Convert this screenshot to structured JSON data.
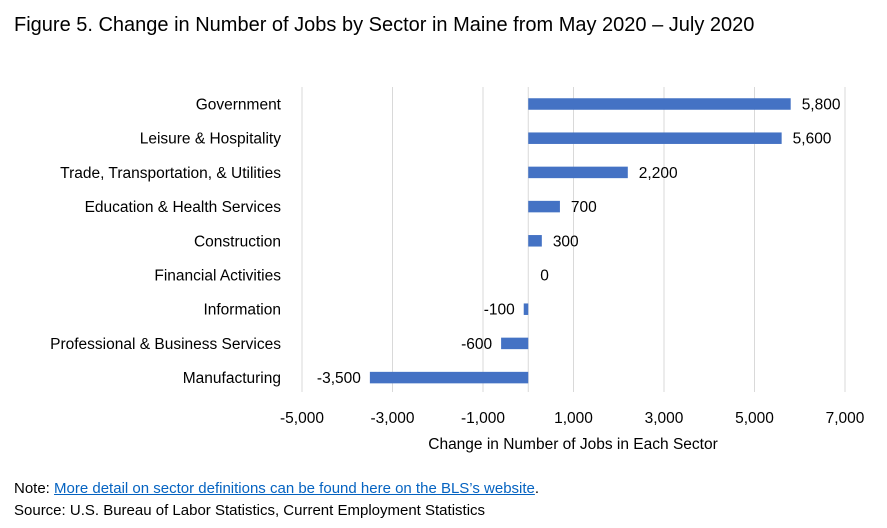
{
  "figure_title": "Figure 5. Change in Number of Jobs by Sector in Maine from May 2020 – July 2020",
  "note_prefix": "Note: ",
  "note_link_text": "More detail on sector definitions can be found here on the BLS’s website",
  "note_suffix": ".",
  "source": "Source: U.S. Bureau of Labor Statistics, Current Employment Statistics",
  "colors": {
    "bar": "#4472c4",
    "grid": "#d9d9d9",
    "axis": "#000000"
  },
  "chart_data": {
    "type": "bar",
    "orientation": "horizontal",
    "categories": [
      "Government",
      "Leisure & Hospitality",
      "Trade, Transportation, & Utilities",
      "Education & Health Services",
      "Construction",
      "Financial Activities",
      "Information",
      "Professional & Business Services",
      "Manufacturing"
    ],
    "values": [
      5800,
      5600,
      2200,
      700,
      300,
      0,
      -100,
      -600,
      -3500
    ],
    "value_labels": [
      "5,800",
      "5,600",
      "2,200",
      "700",
      "300",
      "0",
      "-100",
      "-600",
      "-3,500"
    ],
    "xlabel": "Change in Number of Jobs in Each Sector",
    "ylabel": "",
    "xlim": [
      -5000,
      7000
    ],
    "xticks": [
      -5000,
      -3000,
      -1000,
      1000,
      3000,
      5000,
      7000
    ],
    "xtick_labels": [
      "-5,000",
      "-3,000",
      "-1,000",
      "1,000",
      "3,000",
      "5,000",
      "7,000"
    ],
    "grid": true,
    "legend": "none"
  }
}
